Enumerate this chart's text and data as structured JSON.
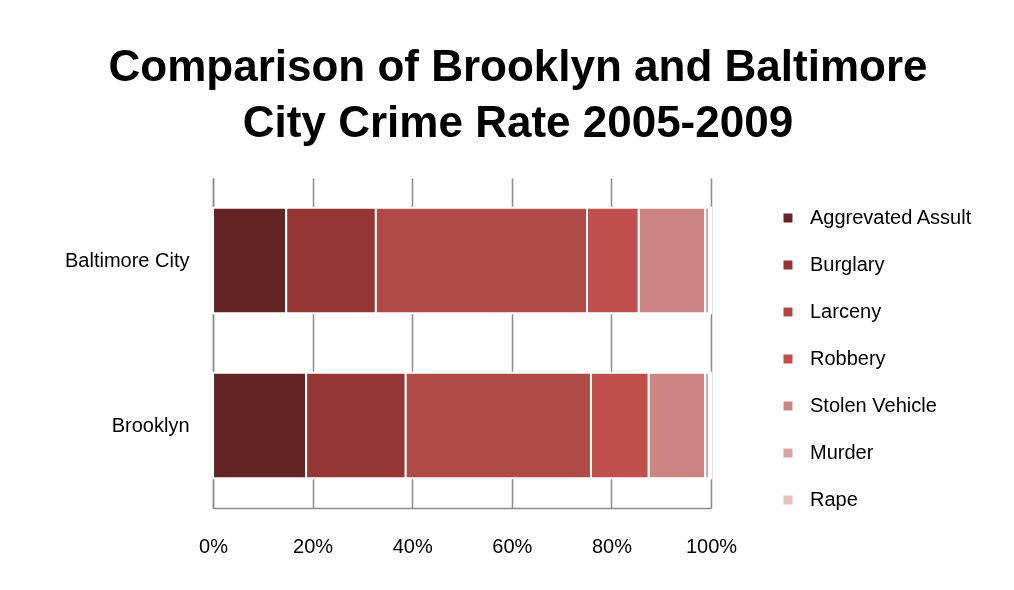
{
  "chart_data": {
    "type": "bar",
    "title": "Comparison of Brooklyn and Baltimore City Crime Rate 2005-2009",
    "orientation": "horizontal",
    "stacked": true,
    "categories": [
      "Baltimore City",
      "Brooklyn"
    ],
    "series": [
      {
        "name": "Aggrevated Assult",
        "color": "#632523",
        "values": [
          14.7,
          18.7
        ]
      },
      {
        "name": "Burglary",
        "color": "#943634",
        "values": [
          18.0,
          20.0
        ]
      },
      {
        "name": "Larceny",
        "color": "#b04a47",
        "values": [
          42.4,
          37.2
        ]
      },
      {
        "name": "Robbery",
        "color": "#c0504d",
        "values": [
          10.4,
          11.6
        ]
      },
      {
        "name": "Stolen Vehicle",
        "color": "#cd8583",
        "values": [
          13.3,
          11.3
        ]
      },
      {
        "name": "Murder",
        "color": "#d9a5a4",
        "values": [
          0.8,
          0.8
        ]
      },
      {
        "name": "Rape",
        "color": "#e6c1c0",
        "values": [
          0.4,
          0.4
        ]
      }
    ],
    "xlim": [
      0,
      100
    ],
    "xticks": [
      {
        "value": 0,
        "label": "0%"
      },
      {
        "value": 20,
        "label": "20%"
      },
      {
        "value": 40,
        "label": "40%"
      },
      {
        "value": 60,
        "label": "60%"
      },
      {
        "value": 80,
        "label": "80%"
      },
      {
        "value": 100,
        "label": "100%"
      }
    ],
    "grid": "x",
    "legend": "right"
  }
}
